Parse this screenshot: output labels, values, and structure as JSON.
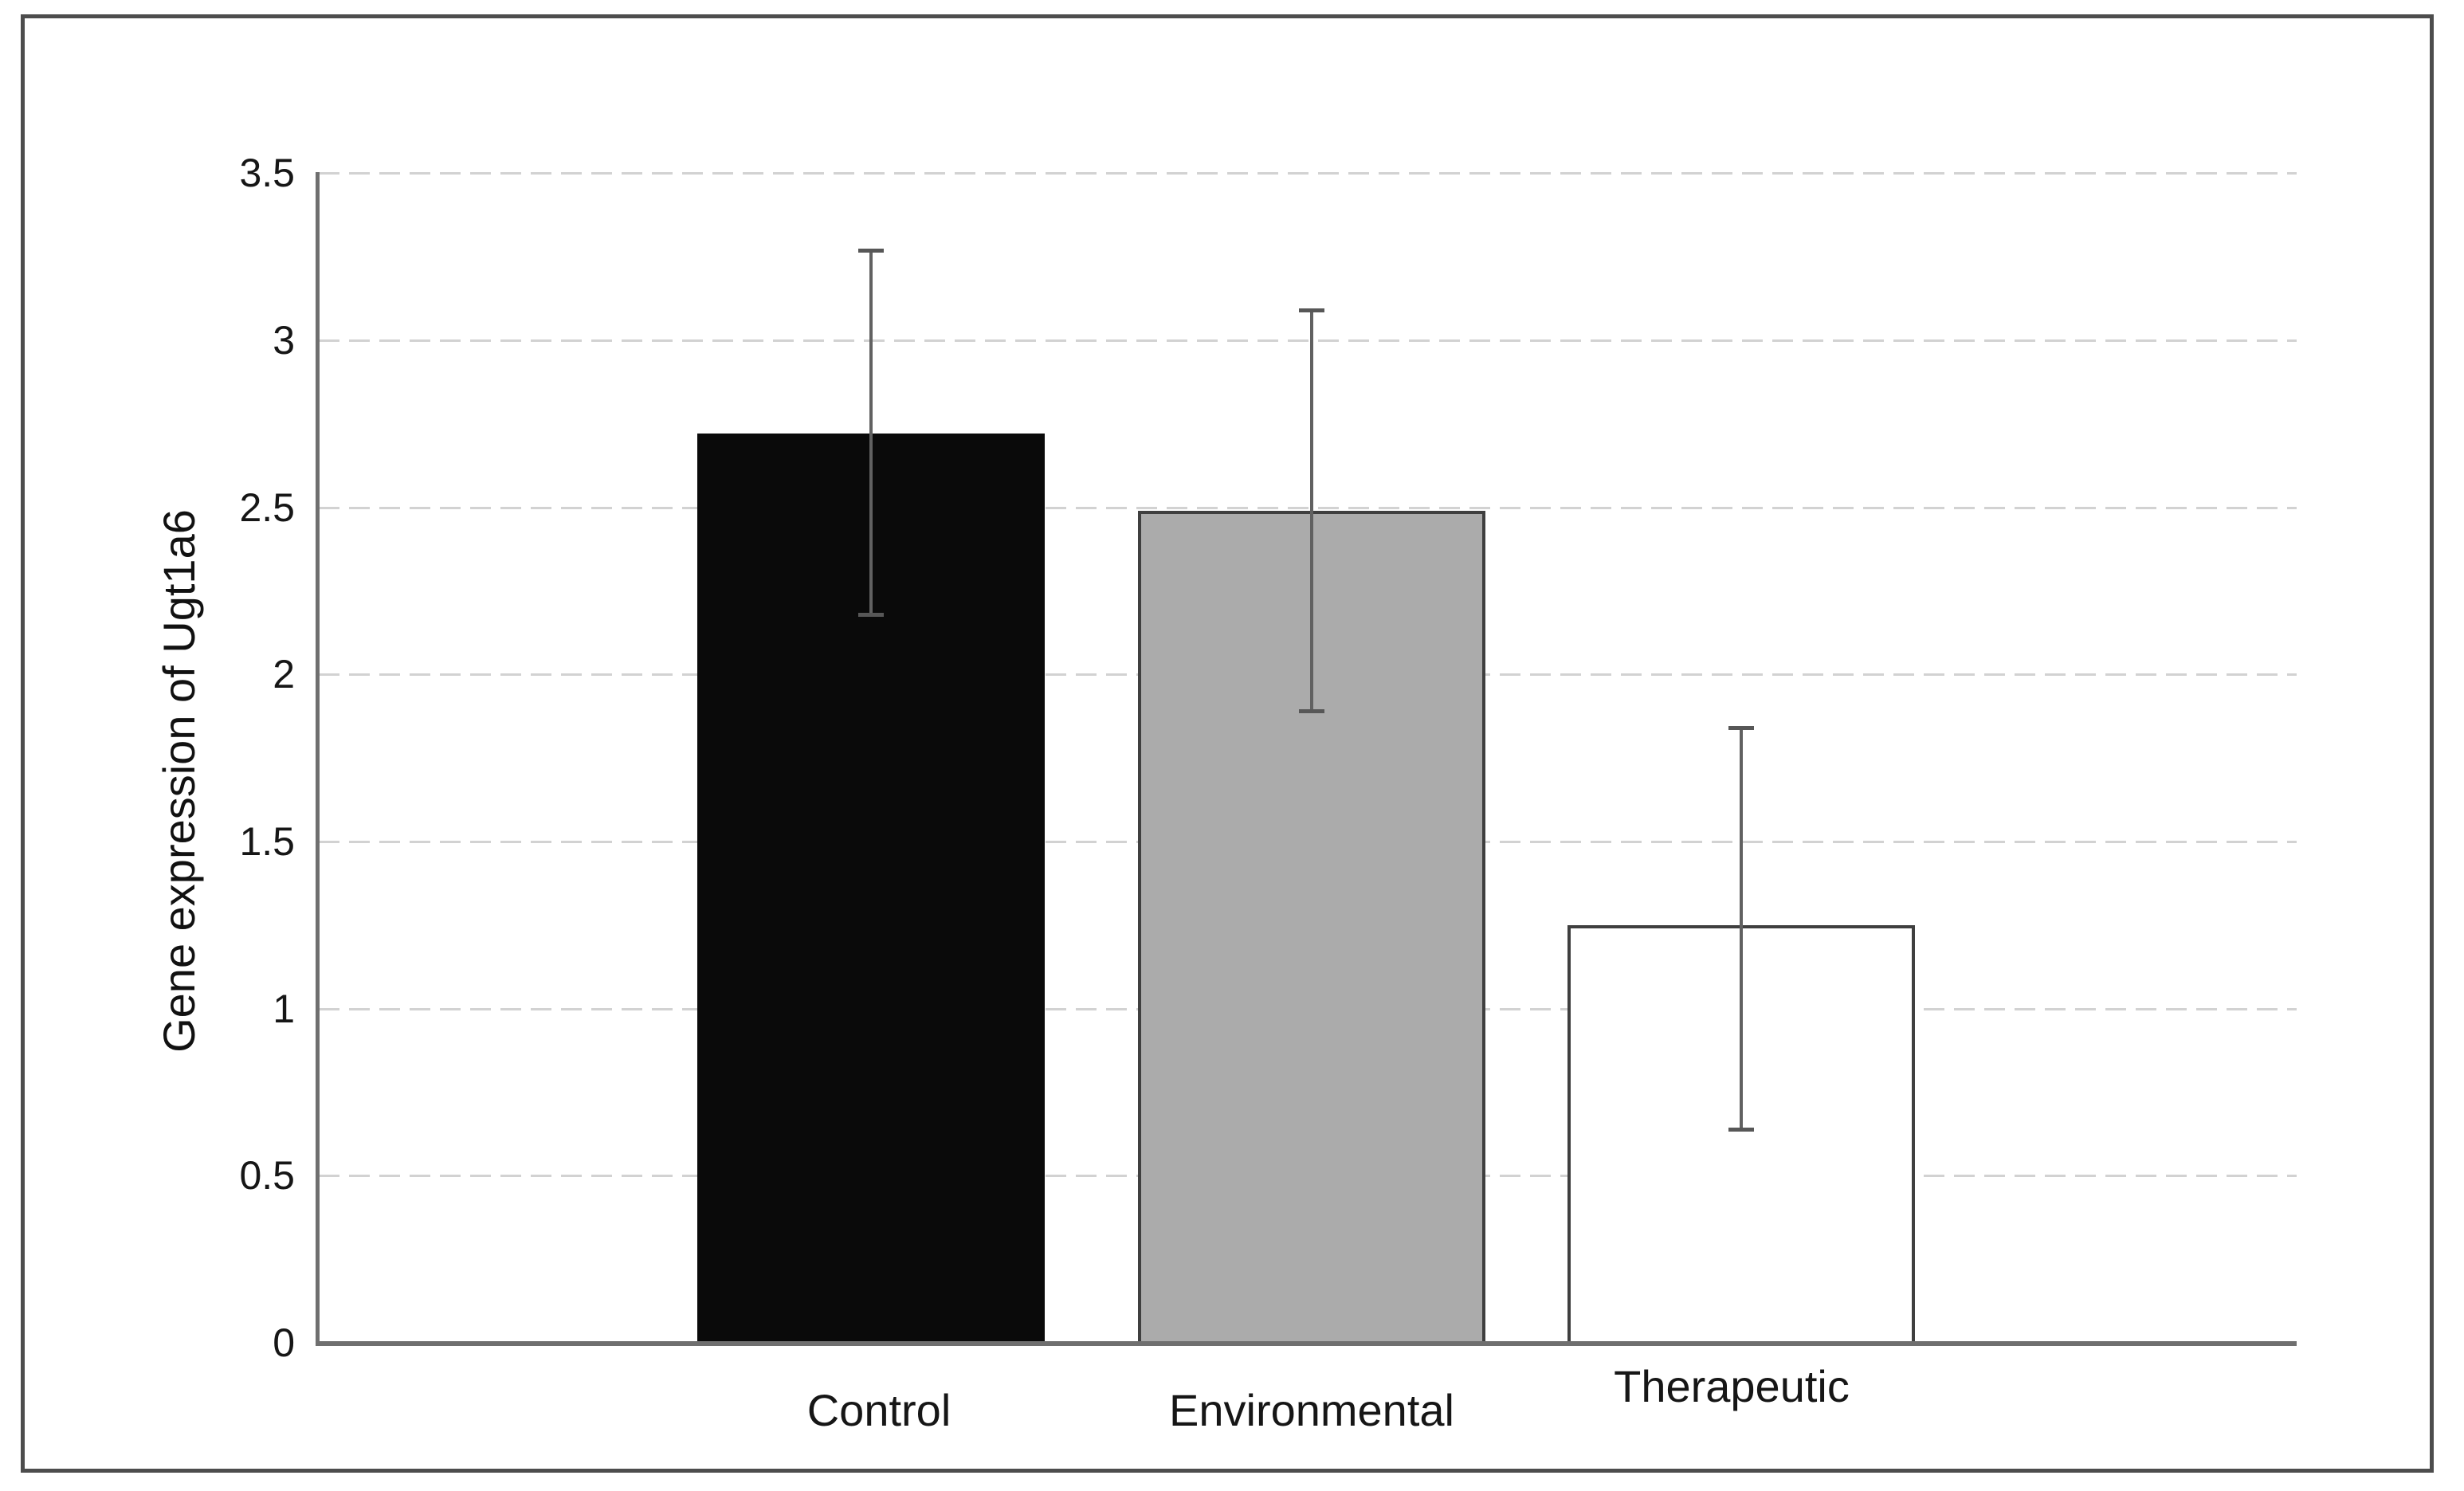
{
  "figure": {
    "y_axis_title": "Gene expression of Ugt1a6"
  },
  "chart_data": {
    "type": "bar",
    "title": "",
    "xlabel": "",
    "ylabel": "Gene expression of Ugt1a6",
    "categories": [
      "Control",
      "Environmental",
      "Therapeutic"
    ],
    "values": [
      2.72,
      2.49,
      1.25
    ],
    "error_bars": {
      "upper": [
        3.27,
        3.09,
        1.84
      ],
      "lower": [
        2.18,
        1.89,
        0.64
      ]
    },
    "ylim": [
      0,
      3.5
    ],
    "ytick_step": 0.5,
    "ytick_labels": [
      "0",
      "0.5",
      "1",
      "1.5",
      "2",
      "2.5",
      "3",
      "3.5"
    ],
    "grid": true,
    "legend_position": "none",
    "bar_fill_colors": [
      "#0a0a0a",
      "#ababab",
      "#ffffff"
    ],
    "bar_border_colors": [
      "#0a0a0a",
      "#3f3f3f",
      "#3f3f3f"
    ],
    "gridline_color": "#d2d2d2",
    "axis_color": "#6f6f6f",
    "error_bar_color": "#616161",
    "frame_color": "#4d4d4d"
  }
}
